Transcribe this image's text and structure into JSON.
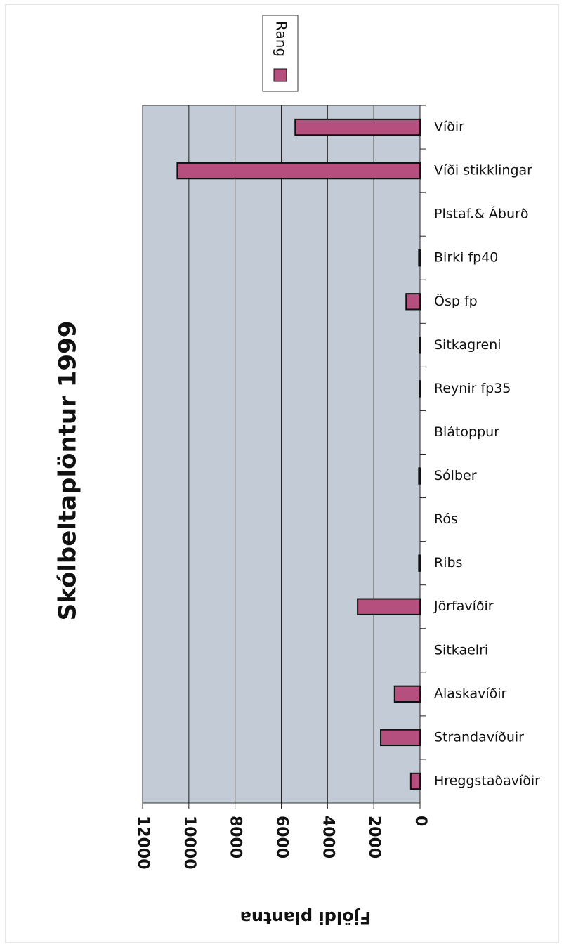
{
  "chart_data": {
    "type": "bar",
    "orientation": "horizontal",
    "title": "Skólbeltaplöntur 1999",
    "value_axis_label": "Fjöldi plantna",
    "categories": [
      "Víðir",
      "Víði stikklingar",
      "Plstaf.& Áburð",
      "Birki fp40",
      "Ösp fp",
      "Sitkagreni",
      "Reynir fp35",
      "Blátoppur",
      "Sólber",
      "Rós",
      "Ribs",
      "Jörfavíðir",
      "Sitkaelri",
      "Alaskavíðir",
      "Strandavíðuir",
      "Hreggstaðavíðir"
    ],
    "series": [
      {
        "name": "Rang",
        "color": "#b5507e",
        "values": [
          5400,
          10500,
          0,
          50,
          600,
          30,
          30,
          0,
          50,
          0,
          50,
          2700,
          0,
          1100,
          1700,
          400
        ]
      }
    ],
    "xlim": [
      0,
      12000
    ],
    "xticks": [
      0,
      2000,
      4000,
      6000,
      8000,
      10000,
      12000
    ],
    "grid": true,
    "legend": "top"
  }
}
